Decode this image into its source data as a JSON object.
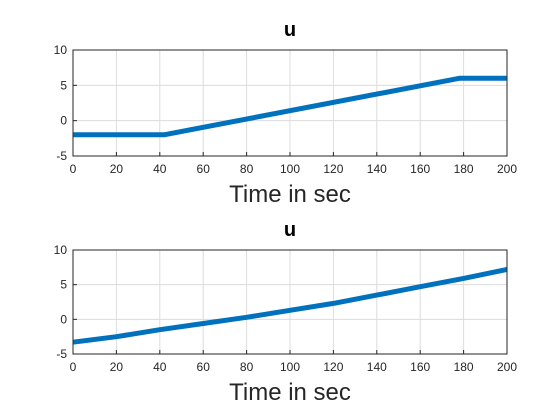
{
  "chart_data": [
    {
      "type": "line",
      "title": "u",
      "xlabel": "Time in sec",
      "ylabel": "",
      "xlim": [
        0,
        200
      ],
      "ylim": [
        -5,
        10
      ],
      "xticks": [
        "0",
        "20",
        "40",
        "60",
        "80",
        "100",
        "120",
        "140",
        "160",
        "180",
        "200"
      ],
      "yticks": [
        "-5",
        "0",
        "5",
        "10"
      ],
      "grid": true,
      "color": "#0072BD",
      "series": [
        {
          "x": [
            0,
            42,
            178,
            200
          ],
          "y": [
            -2,
            -2,
            6,
            6
          ]
        }
      ]
    },
    {
      "type": "line",
      "title": "u",
      "xlabel": "Time in sec",
      "ylabel": "",
      "xlim": [
        0,
        200
      ],
      "ylim": [
        -5,
        10
      ],
      "xticks": [
        "0",
        "20",
        "40",
        "60",
        "80",
        "100",
        "120",
        "140",
        "160",
        "180",
        "200"
      ],
      "yticks": [
        "-5",
        "0",
        "5",
        "10"
      ],
      "grid": true,
      "color": "#0072BD",
      "series": [
        {
          "x": [
            0,
            20,
            40,
            60,
            80,
            100,
            120,
            140,
            160,
            180,
            200
          ],
          "y": [
            -3.3,
            -2.5,
            -1.5,
            -0.6,
            0.3,
            1.3,
            2.3,
            3.5,
            4.7,
            5.9,
            7.2
          ]
        }
      ]
    }
  ]
}
